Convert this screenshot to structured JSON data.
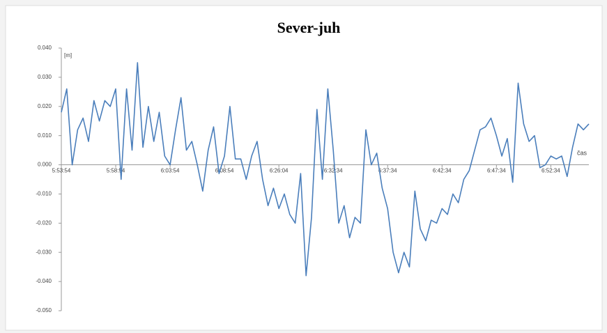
{
  "chart_data": {
    "type": "line",
    "title": "Sever-juh",
    "y_axis_label": "[m]",
    "x_axis_label": "čas",
    "categories": [
      "5:53:54",
      null,
      null,
      null,
      null,
      null,
      null,
      null,
      null,
      null,
      "5:58:54",
      null,
      null,
      null,
      null,
      null,
      null,
      null,
      null,
      null,
      "6:03:54",
      null,
      null,
      null,
      null,
      null,
      null,
      null,
      null,
      null,
      "6:08:54",
      null,
      null,
      null,
      null,
      null,
      null,
      null,
      null,
      null,
      "6:26:04",
      null,
      null,
      null,
      null,
      null,
      null,
      null,
      null,
      null,
      "6:32:34",
      null,
      null,
      null,
      null,
      null,
      null,
      null,
      null,
      null,
      "6:37:34",
      null,
      null,
      null,
      null,
      null,
      null,
      null,
      null,
      null,
      "6:42:34",
      null,
      null,
      null,
      null,
      null,
      null,
      null,
      null,
      null,
      "6:47:34",
      null,
      null,
      null,
      null,
      null,
      null,
      null,
      null,
      null,
      "6:52:34",
      null,
      null,
      null,
      null,
      null,
      null,
      null
    ],
    "series": [
      {
        "name": "Sever-juh",
        "color": "#4a7ebb",
        "values": [
          0.018,
          0.026,
          0.0,
          0.012,
          0.016,
          0.008,
          0.022,
          0.015,
          0.022,
          0.02,
          0.026,
          -0.005,
          0.026,
          0.005,
          0.035,
          0.006,
          0.02,
          0.008,
          0.018,
          0.003,
          0.0,
          0.012,
          0.023,
          0.005,
          0.008,
          0.0,
          -0.009,
          0.005,
          0.013,
          -0.003,
          0.003,
          0.02,
          0.002,
          0.002,
          -0.005,
          0.003,
          0.008,
          -0.005,
          -0.014,
          -0.008,
          -0.015,
          -0.01,
          -0.017,
          -0.02,
          -0.003,
          -0.038,
          -0.018,
          0.019,
          -0.005,
          0.026,
          0.005,
          -0.02,
          -0.014,
          -0.025,
          -0.018,
          -0.02,
          0.012,
          0.0,
          0.004,
          -0.008,
          -0.015,
          -0.03,
          -0.037,
          -0.03,
          -0.035,
          -0.009,
          -0.022,
          -0.026,
          -0.019,
          -0.02,
          -0.015,
          -0.017,
          -0.01,
          -0.013,
          -0.005,
          -0.002,
          0.005,
          0.012,
          0.013,
          0.016,
          0.01,
          0.003,
          0.009,
          -0.006,
          0.028,
          0.014,
          0.008,
          0.01,
          -0.001,
          0.0,
          0.003,
          0.002,
          0.003,
          -0.004,
          0.006,
          0.014,
          0.012,
          0.014
        ]
      }
    ],
    "ylim": [
      -0.05,
      0.04
    ],
    "yticks": [
      {
        "value": 0.04,
        "label": "0.040"
      },
      {
        "value": 0.03,
        "label": "0.030"
      },
      {
        "value": 0.02,
        "label": "0.020"
      },
      {
        "value": 0.01,
        "label": "0.010"
      },
      {
        "value": 0,
        "label": "0.000"
      },
      {
        "value": -0.01,
        "label": "-0.010"
      },
      {
        "value": -0.02,
        "label": "-0.020"
      },
      {
        "value": -0.03,
        "label": "-0.030"
      },
      {
        "value": -0.04,
        "label": "-0.040"
      },
      {
        "value": -0.05,
        "label": "-0.050"
      }
    ]
  }
}
